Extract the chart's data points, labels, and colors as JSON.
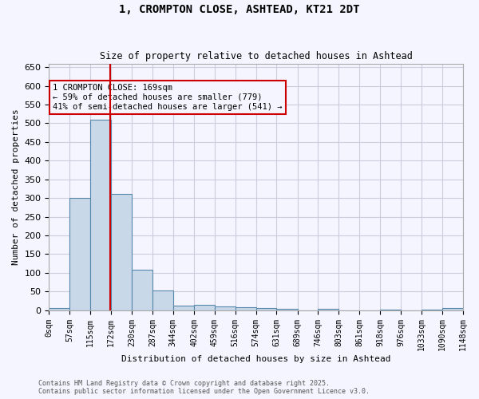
{
  "title1": "1, CROMPTON CLOSE, ASHTEAD, KT21 2DT",
  "title2": "Size of property relative to detached houses in Ashtead",
  "xlabel": "Distribution of detached houses by size in Ashtead",
  "ylabel": "Number of detached properties",
  "bin_edges": [
    0,
    57,
    115,
    172,
    230,
    287,
    344,
    402,
    459,
    516,
    574,
    631,
    689,
    746,
    803,
    861,
    918,
    976,
    1033,
    1090,
    1148
  ],
  "bar_values": [
    5,
    300,
    510,
    310,
    107,
    53,
    12,
    15,
    10,
    7,
    5,
    3,
    0,
    3,
    0,
    0,
    2,
    0,
    2,
    5
  ],
  "bar_color": "#c8d8e8",
  "bar_edge_color": "#5588aa",
  "property_line_x": 169,
  "property_line_color": "#cc0000",
  "annotation_text": "1 CROMPTON CLOSE: 169sqm\n← 59% of detached houses are smaller (779)\n41% of semi-detached houses are larger (541) →",
  "annotation_box_color": "#cc0000",
  "ylim": [
    0,
    660
  ],
  "yticks": [
    0,
    50,
    100,
    150,
    200,
    250,
    300,
    350,
    400,
    450,
    500,
    550,
    600,
    650
  ],
  "xtick_labels": [
    "0sqm",
    "57sqm",
    "115sqm",
    "172sqm",
    "230sqm",
    "287sqm",
    "344sqm",
    "402sqm",
    "459sqm",
    "516sqm",
    "574sqm",
    "631sqm",
    "689sqm",
    "746sqm",
    "803sqm",
    "861sqm",
    "918sqm",
    "976sqm",
    "1033sqm",
    "1090sqm",
    "1148sqm"
  ],
  "footer_text": "Contains HM Land Registry data © Crown copyright and database right 2025.\nContains public sector information licensed under the Open Government Licence v3.0.",
  "background_color": "#f5f5ff",
  "grid_color": "#ccccdd"
}
